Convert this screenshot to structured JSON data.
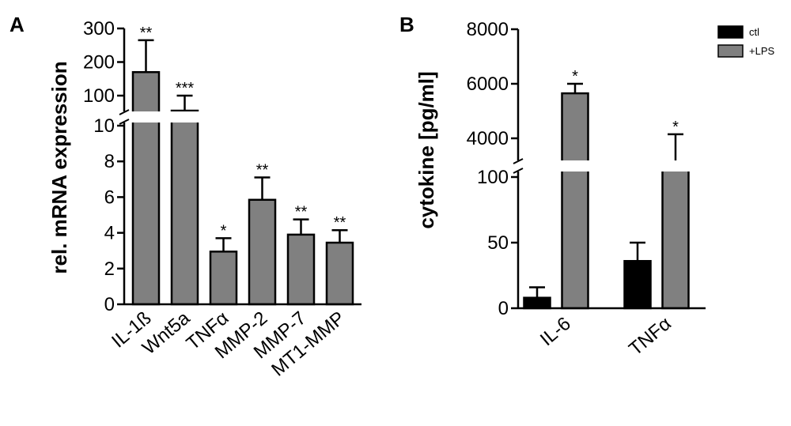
{
  "chart_data": [
    {
      "panel": "A",
      "type": "bar",
      "ylabel": "rel. mRNA expression",
      "y_axis_broken": true,
      "ylim_lower": [
        0,
        10
      ],
      "lower_ticks": [
        "0",
        "2",
        "4",
        "6",
        "8",
        "10"
      ],
      "ylim_upper": [
        100,
        300
      ],
      "upper_ticks": [
        "100",
        "200",
        "300"
      ],
      "categories": [
        "IL-1ß",
        "Wnt5a",
        "TNFα",
        "MMP-2",
        "MMP-7",
        "MT1-MMP"
      ],
      "values": [
        170,
        85,
        2.95,
        5.85,
        3.9,
        3.45
      ],
      "errors": [
        95,
        15,
        0.75,
        1.25,
        0.85,
        0.7
      ],
      "significance": [
        "**",
        "***",
        "*",
        "**",
        "**",
        "**"
      ],
      "bar_color": "#808080"
    },
    {
      "panel": "B",
      "type": "bar",
      "ylabel": "cytokine [pg/ml]",
      "y_axis_broken": true,
      "ylim_lower": [
        0,
        100
      ],
      "lower_ticks": [
        "0",
        "50",
        "100"
      ],
      "ylim_upper": [
        4000,
        8000
      ],
      "upper_ticks": [
        "4000",
        "6000",
        "8000"
      ],
      "categories": [
        "IL-6",
        "TNFα"
      ],
      "series": [
        {
          "name": "ctl",
          "color": "#000000",
          "values": [
            8,
            36
          ],
          "errors": [
            8,
            14
          ],
          "significance": [
            "",
            ""
          ]
        },
        {
          "name": "+LPS",
          "color": "#808080",
          "values": [
            5650,
            3850
          ],
          "errors": [
            350,
            300
          ],
          "significance": [
            "*",
            "*"
          ]
        }
      ],
      "legend_position": "top-right"
    }
  ]
}
